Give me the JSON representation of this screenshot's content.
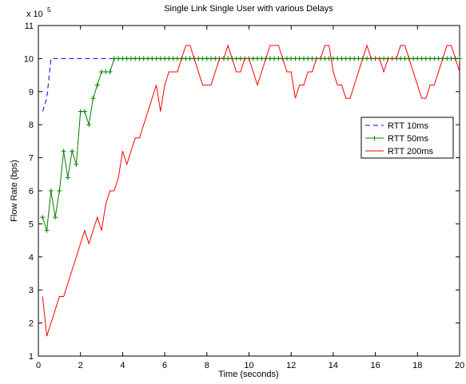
{
  "chart_data": {
    "type": "line",
    "title": "Single Link Single User with various Delays",
    "x_label": "Time (seconds)",
    "y_label": "Flow Rate (bps)",
    "y_multiplier": "x 10",
    "y_multiplier_exponent": "5",
    "xlim": [
      0,
      20
    ],
    "xticks": [
      0,
      2,
      4,
      6,
      8,
      10,
      12,
      14,
      16,
      18,
      20
    ],
    "ylim": [
      1,
      11
    ],
    "yticks": [
      1,
      2,
      3,
      4,
      5,
      6,
      7,
      8,
      9,
      10,
      11
    ],
    "grid": false,
    "legend": "right",
    "series": [
      {
        "name": "RTT 10ms",
        "color": "#0000ff",
        "style": "dashed",
        "x": [
          0.2,
          0.4,
          0.6,
          20
        ],
        "values": [
          8.4,
          8.8,
          10,
          10
        ]
      },
      {
        "name": "RTT 50ms",
        "color": "#008000",
        "style": "solid",
        "marker": "plus",
        "x": [
          0.2,
          0.4,
          0.6,
          0.8,
          1.0,
          1.2,
          1.4,
          1.6,
          1.8,
          2.0,
          2.2,
          2.4,
          2.6,
          2.8,
          3.0,
          3.2,
          3.4,
          3.6,
          3.8,
          4.0,
          4.2,
          4.4,
          4.6,
          4.8,
          5.0,
          5.2,
          5.4,
          5.6,
          5.8,
          6.0,
          6.2,
          6.4,
          6.6,
          6.8,
          7.0,
          7.2,
          7.4,
          7.6,
          7.8,
          8.0,
          8.2,
          8.4,
          8.6,
          8.8,
          9.0,
          9.2,
          9.4,
          9.6,
          9.8,
          10.0,
          10.2,
          10.4,
          10.6,
          10.8,
          11.0,
          11.2,
          11.4,
          11.6,
          11.8,
          12.0,
          12.2,
          12.4,
          12.6,
          12.8,
          13.0,
          13.2,
          13.4,
          13.6,
          13.8,
          14.0,
          14.2,
          14.4,
          14.6,
          14.8,
          15.0,
          15.2,
          15.4,
          15.6,
          15.8,
          16.0,
          16.2,
          16.4,
          16.6,
          16.8,
          17.0,
          17.2,
          17.4,
          17.6,
          17.8,
          18.0,
          18.2,
          18.4,
          18.6,
          18.8,
          19.0,
          19.2,
          19.4,
          19.6,
          19.8,
          20.0
        ],
        "values": [
          5.2,
          4.8,
          6.0,
          5.2,
          6.0,
          7.2,
          6.4,
          7.2,
          6.8,
          8.4,
          8.4,
          8.0,
          8.8,
          9.2,
          9.6,
          9.6,
          9.6,
          10,
          10,
          10,
          10,
          10,
          10,
          10,
          10,
          10,
          10,
          10,
          10,
          10,
          10,
          10,
          10,
          10,
          10,
          10,
          10,
          10,
          10,
          10,
          10,
          10,
          10,
          10,
          10,
          10,
          10,
          10,
          10,
          10,
          10,
          10,
          10,
          10,
          10,
          10,
          10,
          10,
          10,
          10,
          10,
          10,
          10,
          10,
          10,
          10,
          10,
          10,
          10,
          10,
          10,
          10,
          10,
          10,
          10,
          10,
          10,
          10,
          10,
          10,
          10,
          10,
          10,
          10,
          10,
          10,
          10,
          10,
          10,
          10,
          10,
          10,
          10,
          10,
          10,
          10,
          10,
          10,
          10,
          10
        ]
      },
      {
        "name": "RTT 200ms",
        "color": "#ff0000",
        "style": "solid",
        "x": [
          0.2,
          0.4,
          0.6,
          0.8,
          1.0,
          1.2,
          1.4,
          1.6,
          1.8,
          2.0,
          2.2,
          2.4,
          2.6,
          2.8,
          3.0,
          3.2,
          3.4,
          3.6,
          3.8,
          4.0,
          4.2,
          4.4,
          4.6,
          4.8,
          5.0,
          5.2,
          5.4,
          5.6,
          5.8,
          6.0,
          6.2,
          6.4,
          6.6,
          6.8,
          7.0,
          7.2,
          7.4,
          7.6,
          7.8,
          8.0,
          8.2,
          8.4,
          8.6,
          8.8,
          9.0,
          9.2,
          9.4,
          9.6,
          9.8,
          10.0,
          10.2,
          10.4,
          10.6,
          10.8,
          11.0,
          11.2,
          11.4,
          11.6,
          11.8,
          12.0,
          12.2,
          12.4,
          12.6,
          12.8,
          13.0,
          13.2,
          13.4,
          13.6,
          13.8,
          14.0,
          14.2,
          14.4,
          14.6,
          14.8,
          15.0,
          15.2,
          15.4,
          15.6,
          15.8,
          16.0,
          16.2,
          16.4,
          16.6,
          16.8,
          17.0,
          17.2,
          17.4,
          17.6,
          17.8,
          18.0,
          18.2,
          18.4,
          18.6,
          18.8,
          19.0,
          19.2,
          19.4,
          19.6,
          19.8,
          20.0
        ],
        "values": [
          2.8,
          1.6,
          2.0,
          2.4,
          2.8,
          2.8,
          3.2,
          3.6,
          4.0,
          4.4,
          4.8,
          4.4,
          4.8,
          5.2,
          4.8,
          5.6,
          6.0,
          6.0,
          6.4,
          7.2,
          6.8,
          7.2,
          7.6,
          7.6,
          8.0,
          8.4,
          8.8,
          9.2,
          8.4,
          9.2,
          9.6,
          9.6,
          9.6,
          10.0,
          10.4,
          10.4,
          10.0,
          9.6,
          9.2,
          9.2,
          9.2,
          9.6,
          10.0,
          10.0,
          10.4,
          10.0,
          9.6,
          9.6,
          10.0,
          10.0,
          9.6,
          9.2,
          9.6,
          10.0,
          10.4,
          10.4,
          10.4,
          10.0,
          9.6,
          9.6,
          8.8,
          9.2,
          9.2,
          9.6,
          9.6,
          10.0,
          10.0,
          10.4,
          10.4,
          9.6,
          9.2,
          9.2,
          8.8,
          8.8,
          9.2,
          9.6,
          10.0,
          10.4,
          10.0,
          10.0,
          10.0,
          9.6,
          10.0,
          10.0,
          10.0,
          10.4,
          10.4,
          10.0,
          9.6,
          9.2,
          8.8,
          8.8,
          9.2,
          9.2,
          9.6,
          10.0,
          10.4,
          10.4,
          10.0,
          9.6
        ]
      }
    ]
  }
}
